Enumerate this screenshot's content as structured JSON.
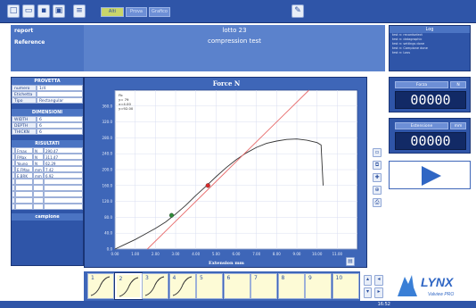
{
  "toolbar": {
    "tabs": [
      "Alti",
      "Prova",
      "Grafico"
    ],
    "icons": [
      "new-file-icon",
      "open-folder-icon",
      "save-icon",
      "print-icon",
      "list-icon",
      "wrench-icon"
    ]
  },
  "header": {
    "row1_label": "report",
    "row2_label": "Reference",
    "lot": "lotto 23",
    "test_name": "compression test"
  },
  "log": {
    "title": "Log",
    "lines": [
      "test n: recordselect",
      "test n: datagraphic",
      "test n: settings  done",
      "test n: Campione done",
      "test n: Loss"
    ]
  },
  "provetta": {
    "title": "PROVETTA",
    "rows": [
      {
        "key": "numero",
        "value": "1/4"
      },
      {
        "key": "Etichetta",
        "value": ""
      },
      {
        "key": "Tipo",
        "value": "Rectangular"
      }
    ]
  },
  "dimensioni": {
    "title": "DIMENSIONI",
    "rows": [
      {
        "key": "WIDTH",
        "value": "6"
      },
      {
        "key": "DEPTH",
        "value": "6"
      },
      {
        "key": "THICKN",
        "value": "6"
      }
    ]
  },
  "risultati": {
    "title": "RISULTATI",
    "rows": [
      {
        "check": "",
        "name": "Fmax",
        "unit": "N",
        "value": "290.47"
      },
      {
        "check": "",
        "name": "FMax",
        "unit": "N",
        "value": "311.47"
      },
      {
        "check": "",
        "name": "Young",
        "unit": "N",
        "value": "62.29"
      },
      {
        "check": "",
        "name": "E.FMax",
        "unit": "mm",
        "value": "7.42"
      },
      {
        "check": "",
        "name": "E.BRK",
        "unit": "mm",
        "value": "6.92"
      },
      {
        "check": "",
        "name": "",
        "unit": "",
        "value": ""
      },
      {
        "check": "",
        "name": "",
        "unit": "",
        "value": ""
      },
      {
        "check": "",
        "name": "",
        "unit": "",
        "value": ""
      },
      {
        "check": "",
        "name": "",
        "unit": "",
        "value": ""
      },
      {
        "check": "",
        "name": "",
        "unit": "",
        "value": ""
      }
    ],
    "footer": "campione"
  },
  "displays": {
    "force": {
      "label": "Forza",
      "unit": "N",
      "value": "00000"
    },
    "extension": {
      "label": "Estensione",
      "unit": "mm",
      "value": "00000"
    }
  },
  "thumbs": [
    "1",
    "2",
    "3",
    "4",
    "5",
    "6",
    "7",
    "8",
    "9",
    "10"
  ],
  "footer": {
    "time": "16:52"
  },
  "brand": {
    "name": "LYNX",
    "sub": "Valview PRO"
  },
  "chart_data": {
    "type": "line",
    "title": "Force N",
    "xlabel": "Extension mm",
    "ylabel": "",
    "xlim": [
      0,
      12
    ],
    "ylim": [
      0,
      400
    ],
    "x_ticks": [
      "0.00",
      "1.00",
      "2.00",
      "3.00",
      "4.00",
      "5.00",
      "6.00",
      "7.00",
      "8.00",
      "9.00",
      "10.00",
      "11.00"
    ],
    "y_ticks": [
      "0.0",
      "40.0",
      "80.0",
      "120.0",
      "160.0",
      "200.0",
      "240.0",
      "280.0",
      "320.0",
      "360.0"
    ],
    "legend_lines": [
      "Fb",
      "y= 79",
      "x=4.00",
      "y=92.00"
    ],
    "series": [
      {
        "color": "#333333",
        "points": [
          [
            0,
            0
          ],
          [
            0.5,
            12
          ],
          [
            1,
            24
          ],
          [
            1.5,
            38
          ],
          [
            2,
            52
          ],
          [
            2.5,
            68
          ],
          [
            3,
            88
          ],
          [
            3.5,
            110
          ],
          [
            4,
            135
          ],
          [
            4.5,
            158
          ],
          [
            5,
            182
          ],
          [
            5.5,
            205
          ],
          [
            6,
            225
          ],
          [
            6.5,
            242
          ],
          [
            7,
            256
          ],
          [
            7.5,
            266
          ],
          [
            8,
            272
          ],
          [
            8.5,
            276
          ],
          [
            9,
            277
          ],
          [
            9.5,
            274
          ],
          [
            10,
            268
          ],
          [
            10.2,
            262
          ],
          [
            10.3,
            160
          ]
        ]
      },
      {
        "color": "#e86c6c",
        "points": [
          [
            1.6,
            0
          ],
          [
            9.6,
            400
          ]
        ]
      }
    ],
    "markers": [
      {
        "x": 2.8,
        "y": 85,
        "color": "#2e8b3a"
      },
      {
        "x": 4.6,
        "y": 160,
        "color": "#d82a2a"
      }
    ],
    "grid": true
  }
}
